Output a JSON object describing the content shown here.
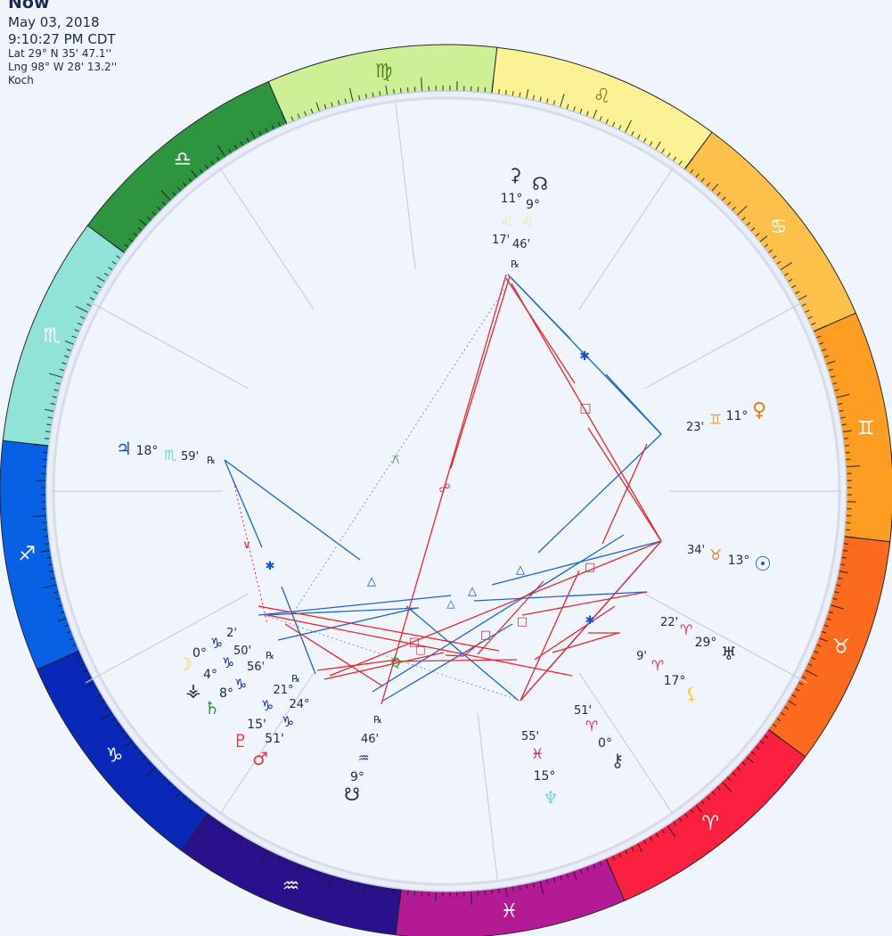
{
  "header": {
    "title": "Now",
    "date": "May 03, 2018",
    "time": "9:10:27 PM CDT",
    "lat": "Lat 29° N 35' 47.1''",
    "lng": "Lng 98° W 28' 13.2''",
    "house_system": "Koch"
  },
  "zodiac": [
    {
      "name": "leo",
      "glyph": "♌",
      "color": "#fbf195",
      "glyph_color": "#8a7d2a"
    },
    {
      "name": "cancer",
      "glyph": "♋",
      "color": "#fdc04a",
      "glyph_color": "#ffffff"
    },
    {
      "name": "gemini",
      "glyph": "♊",
      "color": "#fd9d22",
      "glyph_color": "#ffffff"
    },
    {
      "name": "taurus",
      "glyph": "♉",
      "color": "#fb6a1d",
      "glyph_color": "#ffffff"
    },
    {
      "name": "aries",
      "glyph": "♈",
      "color": "#fb203f",
      "glyph_color": "#ffffff"
    },
    {
      "name": "pisces",
      "glyph": "♓",
      "color": "#b31a94",
      "glyph_color": "#ffffff"
    },
    {
      "name": "aquarius",
      "glyph": "♒",
      "color": "#29118b",
      "glyph_color": "#ffffff"
    },
    {
      "name": "capricorn",
      "glyph": "♑",
      "color": "#0928b8",
      "glyph_color": "#ffffff"
    },
    {
      "name": "sagittarius",
      "glyph": "♐",
      "color": "#0860e4",
      "glyph_color": "#ffffff"
    },
    {
      "name": "scorpio",
      "glyph": "♏",
      "color": "#91e3d8",
      "glyph_color": "#ffffff"
    },
    {
      "name": "libra",
      "glyph": "♎",
      "color": "#2e9440",
      "glyph_color": "#ffffff"
    },
    {
      "name": "virgo",
      "glyph": "♍",
      "color": "#cdef96",
      "glyph_color": "#53851c"
    }
  ],
  "planet_labels": [
    {
      "name": "juno-glyph",
      "text": "⚳",
      "color": "#1d2a52"
    },
    {
      "name": "node-glyph",
      "text": "☊",
      "color": "#1d2a52"
    },
    {
      "name": "juno-degree",
      "text": "11°",
      "color": "#1d2a52"
    },
    {
      "name": "node-degree",
      "text": "9°",
      "color": "#1d2a52"
    },
    {
      "name": "juno-sign",
      "text": "♌",
      "color": "#eee3a0"
    },
    {
      "name": "node-sign",
      "text": "♌",
      "color": "#eee3a0"
    },
    {
      "name": "juno-minutes",
      "text": "17'",
      "color": "#1d2a52"
    },
    {
      "name": "node-minutes",
      "text": "46'",
      "color": "#1d2a52"
    },
    {
      "name": "node-retro",
      "text": "℞",
      "color": "#1d2a52"
    },
    {
      "name": "venus-glyph",
      "text": "♀",
      "color": "#f07a22"
    },
    {
      "name": "venus-degree",
      "text": "11°",
      "color": "#1d2a52"
    },
    {
      "name": "venus-sign",
      "text": "♊",
      "color": "#f0a040"
    },
    {
      "name": "venus-minutes",
      "text": "23'",
      "color": "#1d2a52"
    },
    {
      "name": "sun-glyph",
      "text": "☉",
      "color": "#1550d8"
    },
    {
      "name": "sun-degree",
      "text": "13°",
      "color": "#1d2a52"
    },
    {
      "name": "sun-sign",
      "text": "♉",
      "color": "#f07a22"
    },
    {
      "name": "sun-minutes",
      "text": "34'",
      "color": "#1d2a52"
    },
    {
      "name": "uranus-minutes",
      "text": "22'",
      "color": "#1d2a52"
    },
    {
      "name": "uranus-sign",
      "text": "♈",
      "color": "#f02b4a"
    },
    {
      "name": "uranus-degree",
      "text": "29°",
      "color": "#1d2a52"
    },
    {
      "name": "uranus-glyph",
      "text": "♅",
      "color": "#1d2a52"
    },
    {
      "name": "lilith-minutes",
      "text": "9'",
      "color": "#1d2a52"
    },
    {
      "name": "lilith-sign",
      "text": "♈",
      "color": "#f02b4a"
    },
    {
      "name": "lilith-degree",
      "text": "17°",
      "color": "#1d2a52"
    },
    {
      "name": "lilith-glyph",
      "text": "⚸",
      "color": "#f5d040"
    },
    {
      "name": "chiron-minutes",
      "text": "51'",
      "color": "#1d2a52"
    },
    {
      "name": "chiron-sign",
      "text": "♈",
      "color": "#f02b4a"
    },
    {
      "name": "chiron-degree",
      "text": "0°",
      "color": "#1d2a52"
    },
    {
      "name": "chiron-glyph",
      "text": "⚷",
      "color": "#444444"
    },
    {
      "name": "neptune-minutes",
      "text": "55'",
      "color": "#1d2a52"
    },
    {
      "name": "neptune-sign",
      "text": "♓",
      "color": "#b31a94"
    },
    {
      "name": "neptune-degree",
      "text": "15°",
      "color": "#1d2a52"
    },
    {
      "name": "neptune-glyph",
      "text": "♆",
      "color": "#7ed3e8"
    },
    {
      "name": "southnode-retro",
      "text": "℞",
      "color": "#1d2a52"
    },
    {
      "name": "southnode-minutes",
      "text": "46'",
      "color": "#1d2a52"
    },
    {
      "name": "southnode-sign",
      "text": "♒",
      "color": "#29118b"
    },
    {
      "name": "southnode-degree",
      "text": "9°",
      "color": "#1d2a52"
    },
    {
      "name": "southnode-glyph",
      "text": "☋",
      "color": "#1d2a52"
    },
    {
      "name": "moon-degree",
      "text": "0°",
      "color": "#1d2a52"
    },
    {
      "name": "moon-sign",
      "text": "♑",
      "color": "#0928b8"
    },
    {
      "name": "moon-minutes",
      "text": "2'",
      "color": "#1d2a52"
    },
    {
      "name": "moon-glyph",
      "text": "☽",
      "color": "#f5d040"
    },
    {
      "name": "vesta-degree",
      "text": "4°",
      "color": "#1d2a52"
    },
    {
      "name": "vesta-sign",
      "text": "♑",
      "color": "#0928b8"
    },
    {
      "name": "vesta-minutes",
      "text": "50'",
      "color": "#1d2a52"
    },
    {
      "name": "vesta-retro",
      "text": "℞",
      "color": "#1d2a52"
    },
    {
      "name": "vesta-glyph",
      "text": "⚶",
      "color": "#1d2a52"
    },
    {
      "name": "saturn-degree",
      "text": "8°",
      "color": "#1d2a52"
    },
    {
      "name": "saturn-sign",
      "text": "♑",
      "color": "#0928b8"
    },
    {
      "name": "saturn-minutes",
      "text": "56'",
      "color": "#1d2a52"
    },
    {
      "name": "saturn-retro",
      "text": "℞",
      "color": "#1d2a52"
    },
    {
      "name": "saturn-glyph",
      "text": "♄",
      "color": "#2e9440"
    },
    {
      "name": "pluto-minutes",
      "text": "15'",
      "color": "#1d2a52"
    },
    {
      "name": "pluto-sign",
      "text": "♑",
      "color": "#0928b8"
    },
    {
      "name": "pluto-degree",
      "text": "21°",
      "color": "#1d2a52"
    },
    {
      "name": "pluto-glyph",
      "text": "♇",
      "color": "#e83a48"
    },
    {
      "name": "mars-minutes",
      "text": "51'",
      "color": "#1d2a52"
    },
    {
      "name": "mars-sign",
      "text": "♑",
      "color": "#0928b8"
    },
    {
      "name": "mars-degree",
      "text": "24°",
      "color": "#1d2a52"
    },
    {
      "name": "mars-glyph",
      "text": "♂",
      "color": "#e83a48"
    },
    {
      "name": "jupiter-glyph",
      "text": "♃",
      "color": "#1550d8"
    },
    {
      "name": "jupiter-degree",
      "text": "18°",
      "color": "#1d2a52"
    },
    {
      "name": "jupiter-sign",
      "text": "♏",
      "color": "#7ed3c8"
    },
    {
      "name": "jupiter-minutes",
      "text": "59'",
      "color": "#1d2a52"
    },
    {
      "name": "jupiter-retro",
      "text": "℞",
      "color": "#1d2a52"
    }
  ],
  "aspect_symbols": [
    {
      "name": "sextile-icon",
      "text": "✱",
      "color": "#1550d8"
    },
    {
      "name": "square-icon",
      "text": "□",
      "color": "#e8282e"
    },
    {
      "name": "quincunx-icon",
      "text": "⚻",
      "color": "#2e9440"
    },
    {
      "name": "opposition-icon",
      "text": "☍",
      "color": "#e8282e"
    },
    {
      "name": "semisextile-icon",
      "text": "∨",
      "color": "#e8282e"
    },
    {
      "name": "sextile-icon",
      "text": "✱",
      "color": "#1550d8"
    },
    {
      "name": "trine-icon",
      "text": "△",
      "color": "#1550d8"
    },
    {
      "name": "trine-icon",
      "text": "△",
      "color": "#1550d8"
    },
    {
      "name": "trine-icon",
      "text": "△",
      "color": "#1550d8"
    },
    {
      "name": "trine-icon",
      "text": "△",
      "color": "#1550d8"
    },
    {
      "name": "square-icon",
      "text": "□",
      "color": "#e8282e"
    },
    {
      "name": "square-icon",
      "text": "□",
      "color": "#e8282e"
    },
    {
      "name": "square-icon",
      "text": "□",
      "color": "#e8282e"
    },
    {
      "name": "square-icon",
      "text": "□",
      "color": "#e8282e"
    },
    {
      "name": "square-icon",
      "text": "□",
      "color": "#e8282e"
    },
    {
      "name": "sextile-icon",
      "text": "✱",
      "color": "#1550d8"
    },
    {
      "name": "quintile-icon",
      "text": "Q",
      "color": "#2e9440"
    }
  ]
}
